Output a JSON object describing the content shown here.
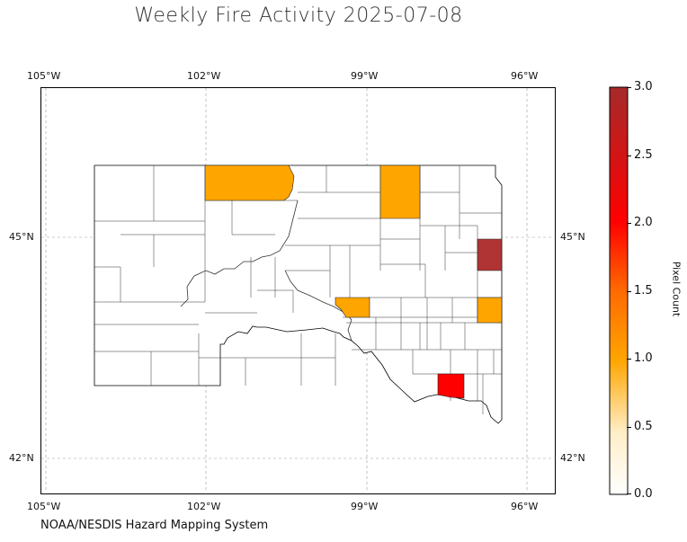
{
  "title": "Weekly Fire Activity 2025-07-08",
  "credit": "NOAA/NESDIS Hazard Mapping System",
  "map": {
    "region": "South Dakota counties",
    "projection": "PlateCarree",
    "lon_range": [
      -105.5,
      -95.2
    ],
    "lat_range": [
      41.3,
      48.7
    ],
    "gridlines": true,
    "lon_ticks": [
      "105°W",
      "102°W",
      "99°W",
      "96°W"
    ],
    "lat_ticks": [
      "45°N",
      "42°N"
    ],
    "highlighted_counties": [
      {
        "area": "north-west border county",
        "value": 1.0,
        "color": "#FFA500"
      },
      {
        "area": "north-central border county",
        "value": 1.0,
        "color": "#FFA500"
      },
      {
        "area": "central county along river",
        "value": 1.0,
        "color": "#FFA500"
      },
      {
        "area": "east-central county",
        "value": 1.0,
        "color": "#FFA500"
      },
      {
        "area": "eastern border county",
        "value": 3.0,
        "color": "#B22222"
      },
      {
        "area": "south-eastern county",
        "value": 2.0,
        "color": "#FF0000"
      }
    ]
  },
  "colorbar": {
    "label": "Pixel Count",
    "min": 0.0,
    "max": 3.0,
    "ticks": [
      "3.0",
      "2.5",
      "2.0",
      "1.5",
      "1.0",
      "0.5",
      "0.0"
    ],
    "colors": [
      "#FFF8E7",
      "#FFA500",
      "#FF4500",
      "#FF0000",
      "#B22222"
    ]
  }
}
